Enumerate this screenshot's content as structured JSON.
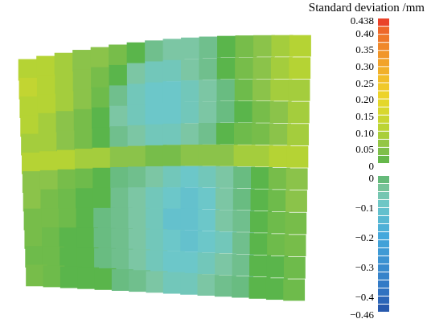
{
  "chart_data": {
    "type": "heatmap",
    "grid": false,
    "tick_labels": false,
    "cells": [
      [
        0.1,
        0.1,
        0.08,
        0.05,
        0.05,
        0.03,
        0,
        -0.03,
        -0.05,
        -0.05,
        -0.03,
        0,
        0.03,
        0.05,
        0.08,
        0.1
      ],
      [
        0.12,
        0.1,
        0.08,
        0.05,
        0.03,
        0,
        -0.05,
        -0.08,
        -0.08,
        -0.05,
        -0.03,
        0,
        0.03,
        0.05,
        0.08,
        0.1
      ],
      [
        0.1,
        0.1,
        0.08,
        0.05,
        0.02,
        -0.03,
        -0.08,
        -0.1,
        -0.1,
        -0.08,
        -0.05,
        -0.02,
        0.02,
        0.05,
        0.08,
        0.08
      ],
      [
        0.1,
        0.08,
        0.05,
        0.03,
        0,
        -0.05,
        -0.08,
        -0.1,
        -0.1,
        -0.08,
        -0.05,
        -0.02,
        0,
        0.03,
        0.05,
        0.08
      ],
      [
        0.08,
        0.08,
        0.05,
        0.03,
        0,
        -0.03,
        -0.05,
        -0.08,
        -0.08,
        -0.05,
        -0.03,
        0,
        0.02,
        0.03,
        0.05,
        0.08
      ],
      [
        0.1,
        0.1,
        0.1,
        0.08,
        0.08,
        0.05,
        0.05,
        0.03,
        0.03,
        0.05,
        0.05,
        0.05,
        0.08,
        0.08,
        0.1,
        0.1
      ],
      [
        0.05,
        0.05,
        0.03,
        0.02,
        0,
        -0.02,
        -0.03,
        -0.05,
        -0.08,
        -0.1,
        -0.08,
        -0.05,
        -0.02,
        0,
        0.03,
        0.05
      ],
      [
        0.05,
        0.03,
        0.02,
        0,
        0,
        -0.03,
        -0.05,
        -0.08,
        -0.1,
        -0.12,
        -0.1,
        -0.05,
        -0.02,
        0,
        0.02,
        0.05
      ],
      [
        0.03,
        0.03,
        0.02,
        0,
        -0.02,
        -0.03,
        -0.05,
        -0.08,
        -0.12,
        -0.12,
        -0.1,
        -0.05,
        -0.03,
        0,
        0.02,
        0.03
      ],
      [
        0.03,
        0.02,
        0,
        0,
        -0.02,
        -0.03,
        -0.05,
        -0.08,
        -0.1,
        -0.12,
        -0.1,
        -0.08,
        -0.03,
        0,
        0.02,
        0.03
      ],
      [
        0.02,
        0.02,
        0,
        0,
        -0.02,
        -0.03,
        -0.05,
        -0.08,
        -0.1,
        -0.1,
        -0.08,
        -0.05,
        -0.03,
        0,
        0,
        0.02
      ],
      [
        0.03,
        0.02,
        0,
        0,
        0,
        -0.02,
        -0.03,
        -0.05,
        -0.08,
        -0.08,
        -0.05,
        -0.03,
        -0.02,
        0,
        0,
        0.02
      ]
    ],
    "colorbar": {
      "title": "Standard deviation /mm",
      "segments": [
        {
          "range": [
            0,
            0.438
          ],
          "ticks": [
            0.438,
            {
              "value": 0.4,
              "label": "0.40"
            },
            0.35,
            {
              "value": 0.3,
              "label": "0.30"
            },
            0.25,
            {
              "value": 0.2,
              "label": "0.20"
            },
            0.15,
            {
              "value": 0.1,
              "label": "0.10"
            },
            0.05,
            0
          ]
        },
        {
          "range": [
            -0.46,
            0
          ],
          "ticks": [
            0,
            {
              "value": -0.1,
              "label": "−0.1"
            },
            {
              "value": -0.2,
              "label": "−0.2"
            },
            {
              "value": -0.3,
              "label": "−0.3"
            },
            {
              "value": -0.4,
              "label": "−0.4"
            },
            {
              "value": -0.46,
              "label": "−0.46"
            }
          ]
        }
      ]
    }
  }
}
